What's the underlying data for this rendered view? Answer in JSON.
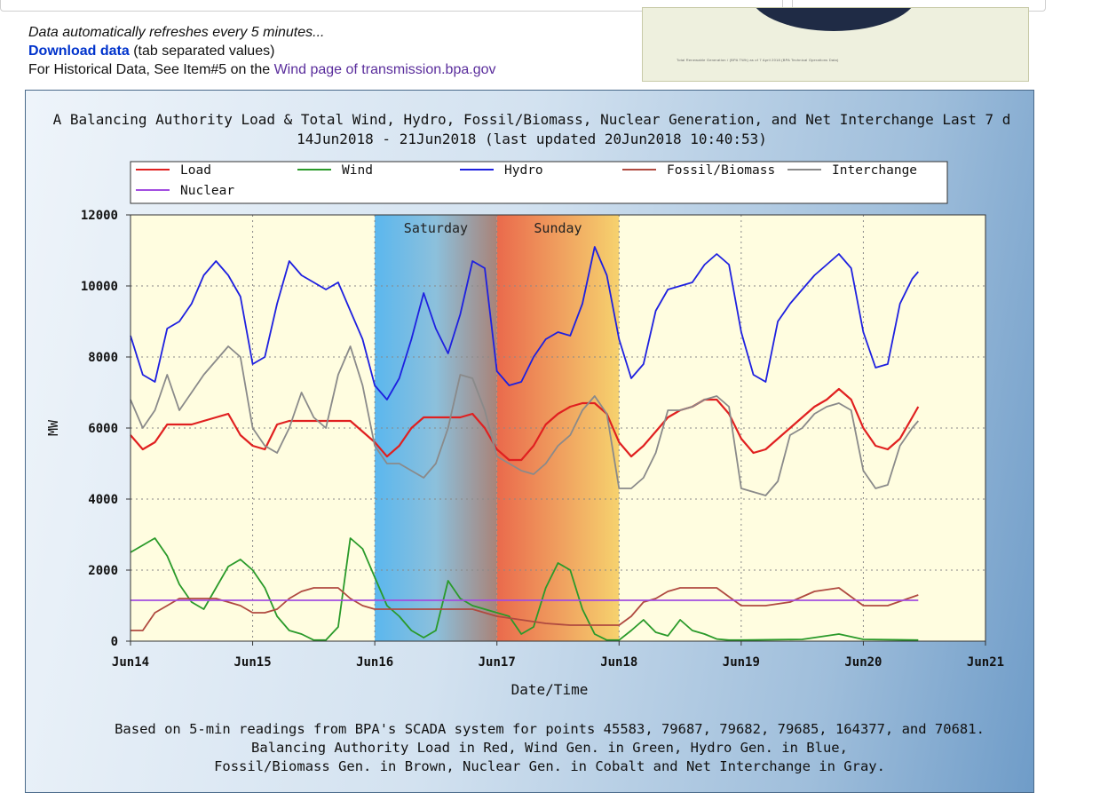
{
  "info": {
    "refresh_text": "Data automatically refreshes every 5 minutes...",
    "download_link": "Download data",
    "download_suffix": " (tab separated values)",
    "historical_prefix": "For Historical Data, See Item#5 on the ",
    "historical_link": "Wind page of transmission.bpa.gov"
  },
  "thumbnail": {
    "caption": "Total Renewable Generation / (BPA TWh) as of 7 April 2018 (BPA Technical Operations Data)"
  },
  "chart_data": {
    "type": "line",
    "title": "A Balancing Authority Load & Total Wind, Hydro, Fossil/Biomass, Nuclear Generation, and Net Interchange Last 7 d",
    "subtitle": "14Jun2018 - 21Jun2018 (last updated 20Jun2018 10:40:53)",
    "xlabel": "Date/Time",
    "ylabel": "MW",
    "xlim": [
      0,
      7
    ],
    "ylim": [
      0,
      12000
    ],
    "x_ticks": [
      "Jun14",
      "Jun15",
      "Jun16",
      "Jun17",
      "Jun18",
      "Jun19",
      "Jun20",
      "Jun21"
    ],
    "y_ticks": [
      0,
      2000,
      4000,
      6000,
      8000,
      10000,
      12000
    ],
    "grid": true,
    "legend_position": "top",
    "weekend_bands": [
      {
        "label": "Saturday",
        "start": 2,
        "end": 3
      },
      {
        "label": "Sunday",
        "start": 3,
        "end": 4
      }
    ],
    "series": [
      {
        "name": "Load",
        "color": "#e02020",
        "x": [
          0,
          0.1,
          0.2,
          0.3,
          0.4,
          0.5,
          0.6,
          0.7,
          0.8,
          0.9,
          1.0,
          1.1,
          1.2,
          1.3,
          1.4,
          1.5,
          1.6,
          1.7,
          1.8,
          1.9,
          2.0,
          2.1,
          2.2,
          2.3,
          2.4,
          2.5,
          2.6,
          2.7,
          2.8,
          2.9,
          3.0,
          3.1,
          3.2,
          3.3,
          3.4,
          3.5,
          3.6,
          3.7,
          3.8,
          3.9,
          4.0,
          4.1,
          4.2,
          4.3,
          4.4,
          4.5,
          4.6,
          4.7,
          4.8,
          4.9,
          5.0,
          5.1,
          5.2,
          5.3,
          5.4,
          5.5,
          5.6,
          5.7,
          5.8,
          5.9,
          6.0,
          6.1,
          6.2,
          6.3,
          6.4,
          6.45
        ],
        "y": [
          5800,
          5400,
          5600,
          6100,
          6100,
          6100,
          6200,
          6300,
          6400,
          5800,
          5500,
          5400,
          6100,
          6200,
          6200,
          6200,
          6200,
          6200,
          6200,
          5900,
          5600,
          5200,
          5500,
          6000,
          6300,
          6300,
          6300,
          6300,
          6400,
          6000,
          5400,
          5100,
          5100,
          5500,
          6100,
          6400,
          6600,
          6700,
          6700,
          6400,
          5600,
          5200,
          5500,
          5900,
          6300,
          6500,
          6600,
          6800,
          6800,
          6400,
          5700,
          5300,
          5400,
          5700,
          6000,
          6300,
          6600,
          6800,
          7100,
          6800,
          6000,
          5500,
          5400,
          5700,
          6300,
          6600
        ]
      },
      {
        "name": "Wind",
        "color": "#2a9a2a",
        "x": [
          0,
          0.1,
          0.2,
          0.3,
          0.4,
          0.5,
          0.6,
          0.7,
          0.8,
          0.9,
          1.0,
          1.1,
          1.2,
          1.3,
          1.4,
          1.5,
          1.6,
          1.7,
          1.8,
          1.9,
          2.0,
          2.1,
          2.2,
          2.3,
          2.4,
          2.5,
          2.6,
          2.7,
          2.8,
          2.9,
          3.0,
          3.1,
          3.2,
          3.3,
          3.4,
          3.5,
          3.6,
          3.7,
          3.8,
          3.9,
          4.0,
          4.1,
          4.2,
          4.3,
          4.4,
          4.5,
          4.6,
          4.7,
          4.8,
          4.9,
          5.0,
          5.5,
          5.8,
          6.0,
          6.45
        ],
        "y": [
          2500,
          2700,
          2900,
          2400,
          1600,
          1100,
          900,
          1500,
          2100,
          2300,
          2000,
          1500,
          700,
          300,
          200,
          30,
          30,
          400,
          2900,
          2600,
          1800,
          1000,
          700,
          300,
          100,
          300,
          1700,
          1200,
          1000,
          900,
          800,
          700,
          200,
          400,
          1500,
          2200,
          2000,
          900,
          200,
          30,
          30,
          300,
          600,
          250,
          150,
          600,
          300,
          200,
          60,
          30,
          30,
          50,
          200,
          50,
          30
        ]
      },
      {
        "name": "Hydro",
        "color": "#1e20e0",
        "x": [
          0,
          0.1,
          0.2,
          0.3,
          0.4,
          0.5,
          0.6,
          0.7,
          0.8,
          0.9,
          1.0,
          1.1,
          1.2,
          1.3,
          1.4,
          1.5,
          1.6,
          1.7,
          1.8,
          1.9,
          2.0,
          2.1,
          2.2,
          2.3,
          2.4,
          2.5,
          2.6,
          2.7,
          2.8,
          2.9,
          3.0,
          3.1,
          3.2,
          3.3,
          3.4,
          3.5,
          3.6,
          3.7,
          3.8,
          3.9,
          4.0,
          4.1,
          4.2,
          4.3,
          4.4,
          4.5,
          4.6,
          4.7,
          4.8,
          4.9,
          5.0,
          5.1,
          5.2,
          5.3,
          5.4,
          5.5,
          5.6,
          5.7,
          5.8,
          5.9,
          6.0,
          6.1,
          6.2,
          6.3,
          6.4,
          6.45
        ],
        "y": [
          8600,
          7500,
          7300,
          8800,
          9000,
          9500,
          10300,
          10700,
          10300,
          9700,
          7800,
          8000,
          9500,
          10700,
          10300,
          10100,
          9900,
          10100,
          9300,
          8500,
          7200,
          6800,
          7400,
          8500,
          9800,
          8800,
          8100,
          9200,
          10700,
          10500,
          7600,
          7200,
          7300,
          8000,
          8500,
          8700,
          8600,
          9500,
          11100,
          10300,
          8500,
          7400,
          7800,
          9300,
          9900,
          10000,
          10100,
          10600,
          10900,
          10600,
          8700,
          7500,
          7300,
          9000,
          9500,
          9900,
          10300,
          10600,
          10900,
          10500,
          8700,
          7700,
          7800,
          9500,
          10200,
          10400
        ]
      },
      {
        "name": "Fossil/Biomass",
        "color": "#b04a40",
        "x": [
          0,
          0.1,
          0.2,
          0.3,
          0.4,
          0.5,
          0.6,
          0.7,
          0.8,
          0.9,
          1.0,
          1.1,
          1.2,
          1.3,
          1.4,
          1.5,
          1.6,
          1.7,
          1.8,
          1.9,
          2.0,
          2.2,
          2.4,
          2.6,
          2.8,
          3.0,
          3.2,
          3.4,
          3.6,
          3.8,
          4.0,
          4.1,
          4.2,
          4.3,
          4.4,
          4.5,
          4.6,
          4.8,
          5.0,
          5.2,
          5.4,
          5.6,
          5.8,
          6.0,
          6.2,
          6.45
        ],
        "y": [
          300,
          300,
          800,
          1000,
          1200,
          1200,
          1200,
          1200,
          1100,
          1000,
          800,
          800,
          900,
          1200,
          1400,
          1500,
          1500,
          1500,
          1200,
          1000,
          900,
          900,
          900,
          900,
          900,
          700,
          600,
          500,
          450,
          450,
          450,
          700,
          1100,
          1200,
          1400,
          1500,
          1500,
          1500,
          1000,
          1000,
          1100,
          1400,
          1500,
          1000,
          1000,
          1300
        ]
      },
      {
        "name": "Nuclear",
        "color": "#a24de0",
        "x": [
          0,
          1,
          1.5,
          2,
          2.5,
          3,
          3.5,
          4,
          4.5,
          5,
          5.5,
          6,
          6.45
        ],
        "y": [
          1150,
          1150,
          1150,
          1150,
          1150,
          1150,
          1150,
          1150,
          1150,
          1150,
          1150,
          1150,
          1150
        ]
      },
      {
        "name": "Interchange",
        "color": "#8a8a8a",
        "x": [
          0,
          0.1,
          0.2,
          0.3,
          0.4,
          0.5,
          0.6,
          0.7,
          0.8,
          0.9,
          1.0,
          1.1,
          1.2,
          1.3,
          1.4,
          1.5,
          1.6,
          1.7,
          1.8,
          1.9,
          2.0,
          2.1,
          2.2,
          2.3,
          2.4,
          2.5,
          2.6,
          2.7,
          2.8,
          2.9,
          3.0,
          3.1,
          3.2,
          3.3,
          3.4,
          3.5,
          3.6,
          3.7,
          3.8,
          3.9,
          4.0,
          4.1,
          4.2,
          4.3,
          4.4,
          4.5,
          4.6,
          4.7,
          4.8,
          4.9,
          5.0,
          5.1,
          5.2,
          5.3,
          5.4,
          5.5,
          5.6,
          5.7,
          5.8,
          5.9,
          6.0,
          6.1,
          6.2,
          6.3,
          6.4,
          6.45
        ],
        "y": [
          6800,
          6000,
          6500,
          7500,
          6500,
          7000,
          7500,
          7900,
          8300,
          8000,
          6000,
          5500,
          5300,
          6000,
          7000,
          6300,
          6000,
          7500,
          8300,
          7200,
          5500,
          5000,
          5000,
          4800,
          4600,
          5000,
          6000,
          7500,
          7400,
          6500,
          5200,
          5000,
          4800,
          4700,
          5000,
          5500,
          5800,
          6500,
          6900,
          6400,
          4300,
          4300,
          4600,
          5300,
          6500,
          6500,
          6600,
          6800,
          6900,
          6600,
          4300,
          4200,
          4100,
          4500,
          5800,
          6000,
          6400,
          6600,
          6700,
          6500,
          4800,
          4300,
          4400,
          5500,
          6000,
          6200
        ]
      }
    ],
    "footer": [
      "Based on 5-min readings from BPA's SCADA system for points 45583, 79687, 79682, 79685, 164377, and 70681.",
      "Balancing Authority Load in Red, Wind Gen. in Green, Hydro Gen. in Blue,",
      "Fossil/Biomass Gen. in Brown, Nuclear Gen. in Cobalt and Net Interchange in Gray."
    ]
  }
}
